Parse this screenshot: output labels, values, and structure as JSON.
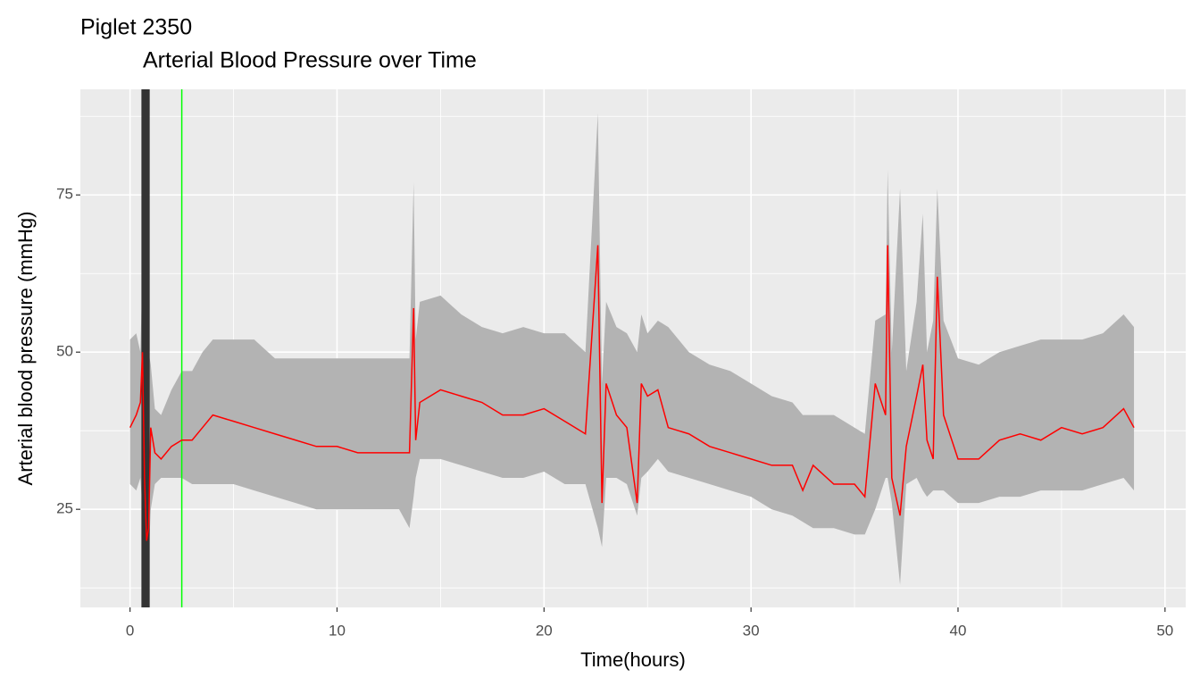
{
  "chart_data": {
    "type": "line",
    "title": "Piglet 2350",
    "subtitle": "Arterial Blood Pressure over Time",
    "x_label": "Time(hours)",
    "y_label": "Arterial blood pressure (mmHg)",
    "xlim": [
      -2.4,
      51
    ],
    "ylim": [
      9.4,
      91.8
    ],
    "xticks": [
      0,
      10,
      20,
      30,
      40,
      50
    ],
    "yticks": [
      25,
      50,
      75
    ],
    "grid": true,
    "x": [
      0,
      0.3,
      0.5,
      0.6,
      0.7,
      0.8,
      0.9,
      1.0,
      1.2,
      1.5,
      2.0,
      2.5,
      3.0,
      3.5,
      4.0,
      5.0,
      6.0,
      7.0,
      8.0,
      9.0,
      10,
      11,
      12,
      13,
      13.5,
      13.7,
      13.8,
      14.0,
      15,
      16,
      17,
      18,
      19,
      20,
      21,
      22,
      22.6,
      22.8,
      23,
      23.5,
      24,
      24.5,
      24.7,
      25,
      25.5,
      26,
      27,
      28,
      29,
      30,
      31,
      32,
      32.5,
      33,
      34,
      35,
      35.5,
      36,
      36.5,
      36.6,
      36.8,
      37.2,
      37.5,
      38,
      38.3,
      38.5,
      38.8,
      39.0,
      39.3,
      40,
      41,
      42,
      43,
      44,
      45,
      46,
      47,
      48,
      48.5
    ],
    "line": {
      "color": "#ff0000",
      "values": [
        38,
        40,
        42,
        50,
        30,
        20,
        22,
        38,
        34,
        33,
        35,
        36,
        36,
        38,
        40,
        39,
        38,
        37,
        36,
        35,
        35,
        34,
        34,
        34,
        34,
        57,
        36,
        42,
        44,
        43,
        42,
        40,
        40,
        41,
        39,
        37,
        67,
        26,
        45,
        40,
        38,
        26,
        45,
        43,
        44,
        38,
        37,
        35,
        34,
        33,
        32,
        32,
        28,
        32,
        29,
        29,
        27,
        45,
        40,
        67,
        30,
        24,
        35,
        43,
        48,
        36,
        33,
        62,
        40,
        33,
        33,
        36,
        37,
        36,
        38,
        37,
        38,
        41,
        38
      ]
    },
    "band": {
      "color": "#b3b3b3",
      "lower": [
        29,
        28,
        30,
        25,
        18,
        16,
        17,
        25,
        29,
        30,
        30,
        30,
        29,
        29,
        29,
        29,
        28,
        27,
        26,
        25,
        25,
        25,
        25,
        25,
        22,
        27,
        30,
        33,
        33,
        32,
        31,
        30,
        30,
        31,
        29,
        29,
        22,
        19,
        30,
        30,
        29,
        24,
        30,
        31,
        33,
        31,
        30,
        29,
        28,
        27,
        25,
        24,
        23,
        22,
        22,
        21,
        21,
        25,
        30,
        30,
        26,
        13,
        29,
        30,
        28,
        27,
        28,
        28,
        28,
        26,
        26,
        27,
        27,
        28,
        28,
        28,
        29,
        30,
        28
      ],
      "upper": [
        52,
        53,
        50,
        63,
        55,
        45,
        50,
        48,
        41,
        40,
        44,
        47,
        47,
        50,
        52,
        52,
        52,
        49,
        49,
        49,
        49,
        49,
        49,
        49,
        49,
        77,
        52,
        58,
        59,
        56,
        54,
        53,
        54,
        53,
        53,
        50,
        88,
        45,
        58,
        54,
        53,
        50,
        56,
        53,
        55,
        54,
        50,
        48,
        47,
        45,
        43,
        42,
        40,
        40,
        40,
        38,
        37,
        55,
        56,
        79,
        50,
        76,
        47,
        58,
        72,
        50,
        55,
        76,
        55,
        49,
        48,
        50,
        51,
        52,
        52,
        52,
        53,
        56,
        54
      ]
    },
    "shade": {
      "color": "#333333",
      "x": [
        0.55,
        0.95
      ]
    },
    "marker": {
      "color": "#00ff00",
      "x": 2.5
    }
  }
}
